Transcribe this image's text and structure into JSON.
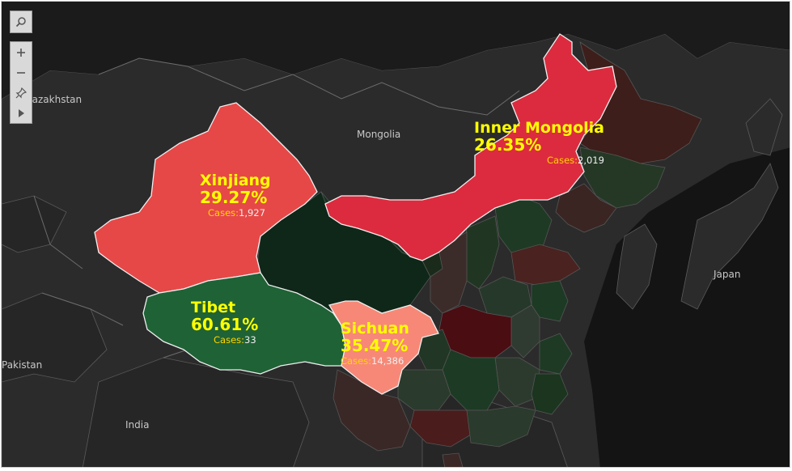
{
  "countries": {
    "kazakhstan": "Kazakhstan",
    "mongolia": "Mongolia",
    "japan": "Japan",
    "pakistan": "Pakistan",
    "india": "India"
  },
  "cases_label": "Cases:",
  "regions": [
    {
      "name": "Xinjiang",
      "percent": "29.27%",
      "cases": "1,927",
      "color": "#e64848"
    },
    {
      "name": "Inner Mongolia",
      "percent": "26.35%",
      "cases": "2,019",
      "color": "#dc2b3e"
    },
    {
      "name": "Tibet",
      "percent": "60.61%",
      "cases": "33",
      "color": "#1f6236"
    },
    {
      "name": "Sichuan",
      "percent": "35.47%",
      "cases": "14,386",
      "color": "#f78877"
    }
  ],
  "controls": {
    "search_icon": "search-icon",
    "zoom_in_icon": "plus-icon",
    "zoom_out_icon": "minus-icon",
    "pin_icon": "pin-icon",
    "expand_icon": "play-icon"
  },
  "colors": {
    "background": "#1b1b1b",
    "land_dark": "#2b2b2b",
    "label_highlight": "#ffff00",
    "cases_key": "#ffd400"
  }
}
